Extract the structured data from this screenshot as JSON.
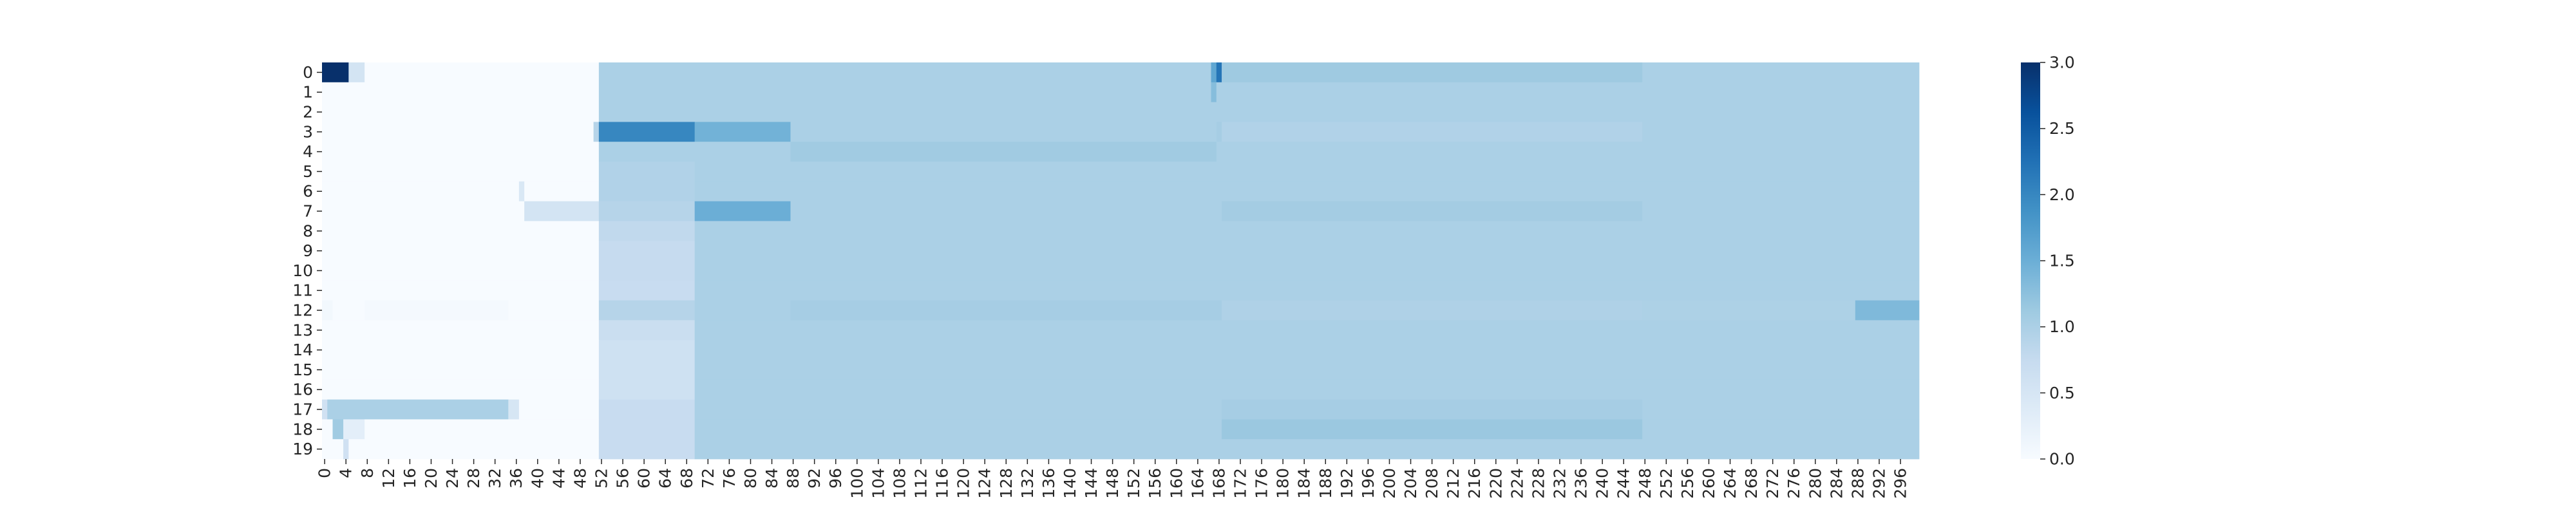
{
  "chart_data": {
    "type": "heatmap",
    "title": "",
    "xlabel": "",
    "ylabel": "",
    "n_rows": 20,
    "n_cols": 300,
    "x_tick_step": 4,
    "y_tick_labels": [
      "0",
      "1",
      "2",
      "3",
      "4",
      "5",
      "6",
      "7",
      "8",
      "9",
      "10",
      "11",
      "12",
      "13",
      "14",
      "15",
      "16",
      "17",
      "18",
      "19"
    ],
    "x_tick_labels": [
      "0",
      "4",
      "8",
      "12",
      "16",
      "20",
      "24",
      "28",
      "32",
      "36",
      "40",
      "44",
      "48",
      "52",
      "56",
      "60",
      "64",
      "68",
      "72",
      "76",
      "80",
      "84",
      "88",
      "92",
      "96",
      "100",
      "104",
      "108",
      "112",
      "116",
      "120",
      "124",
      "128",
      "132",
      "136",
      "140",
      "144",
      "148",
      "152",
      "156",
      "160",
      "164",
      "168",
      "172",
      "176",
      "180",
      "184",
      "188",
      "192",
      "196",
      "200",
      "204",
      "208",
      "212",
      "216",
      "220",
      "224",
      "228",
      "232",
      "236",
      "240",
      "244",
      "248",
      "252",
      "256",
      "260",
      "264",
      "268",
      "272",
      "276",
      "280",
      "284",
      "288",
      "292",
      "296"
    ],
    "colormap": "Blues",
    "colormap_stops": [
      "#f7fbff",
      "#deebf7",
      "#c6dbef",
      "#9ecae1",
      "#6baed6",
      "#4292c6",
      "#2171b5",
      "#08519c",
      "#08306b"
    ],
    "vmin": 0.0,
    "vmax": 3.0,
    "colorbar_ticks": [
      "0.0",
      "0.5",
      "1.0",
      "1.5",
      "2.0",
      "2.5",
      "3.0"
    ],
    "colorbar_tick_values": [
      0.0,
      0.5,
      1.0,
      1.5,
      2.0,
      2.5,
      3.0
    ],
    "value_blocks": [
      {
        "rows": [
          0,
          19
        ],
        "cols": [
          0,
          51
        ],
        "value": 0.0
      },
      {
        "rows": [
          0,
          19
        ],
        "cols": [
          52,
          299
        ],
        "value": 1.0
      },
      {
        "rows": [
          0,
          0
        ],
        "cols": [
          0,
          4
        ],
        "value": 3.0
      },
      {
        "rows": [
          0,
          0
        ],
        "cols": [
          5,
          7
        ],
        "value": 0.55
      },
      {
        "rows": [
          0,
          0
        ],
        "cols": [
          167,
          167
        ],
        "value": 1.6
      },
      {
        "rows": [
          0,
          0
        ],
        "cols": [
          168,
          168
        ],
        "value": 2.2
      },
      {
        "rows": [
          0,
          0
        ],
        "cols": [
          169,
          247
        ],
        "value": 1.12
      },
      {
        "rows": [
          1,
          1
        ],
        "cols": [
          167,
          167
        ],
        "value": 1.3
      },
      {
        "rows": [
          3,
          3
        ],
        "cols": [
          51,
          51
        ],
        "value": 0.9
      },
      {
        "rows": [
          3,
          3
        ],
        "cols": [
          52,
          69
        ],
        "value": 2.0
      },
      {
        "rows": [
          3,
          3
        ],
        "cols": [
          70,
          87
        ],
        "value": 1.45
      },
      {
        "rows": [
          3,
          3
        ],
        "cols": [
          168,
          168
        ],
        "value": 1.05
      },
      {
        "rows": [
          3,
          3
        ],
        "cols": [
          169,
          247
        ],
        "value": 0.95
      },
      {
        "rows": [
          4,
          4
        ],
        "cols": [
          88,
          167
        ],
        "value": 1.1
      },
      {
        "rows": [
          5,
          6
        ],
        "cols": [
          52,
          69
        ],
        "value": 0.95
      },
      {
        "rows": [
          6,
          6
        ],
        "cols": [
          37,
          37
        ],
        "value": 0.45
      },
      {
        "rows": [
          7,
          7
        ],
        "cols": [
          38,
          51
        ],
        "value": 0.55
      },
      {
        "rows": [
          7,
          7
        ],
        "cols": [
          52,
          69
        ],
        "value": 0.9
      },
      {
        "rows": [
          7,
          7
        ],
        "cols": [
          70,
          87
        ],
        "value": 1.5
      },
      {
        "rows": [
          7,
          7
        ],
        "cols": [
          169,
          247
        ],
        "value": 1.07
      },
      {
        "rows": [
          8,
          8
        ],
        "cols": [
          52,
          69
        ],
        "value": 0.8
      },
      {
        "rows": [
          9,
          10
        ],
        "cols": [
          52,
          69
        ],
        "value": 0.75
      },
      {
        "rows": [
          11,
          11
        ],
        "cols": [
          52,
          69
        ],
        "value": 0.72
      },
      {
        "rows": [
          12,
          12
        ],
        "cols": [
          0,
          1
        ],
        "value": 0.08
      },
      {
        "rows": [
          12,
          12
        ],
        "cols": [
          8,
          34
        ],
        "value": 0.05
      },
      {
        "rows": [
          12,
          12
        ],
        "cols": [
          52,
          69
        ],
        "value": 0.9
      },
      {
        "rows": [
          12,
          12
        ],
        "cols": [
          88,
          168
        ],
        "value": 1.05
      },
      {
        "rows": [
          12,
          12
        ],
        "cols": [
          169,
          247
        ],
        "value": 0.97
      },
      {
        "rows": [
          12,
          12
        ],
        "cols": [
          248,
          287
        ],
        "value": 0.98
      },
      {
        "rows": [
          12,
          12
        ],
        "cols": [
          288,
          299
        ],
        "value": 1.35
      },
      {
        "rows": [
          13,
          13
        ],
        "cols": [
          52,
          69
        ],
        "value": 0.68
      },
      {
        "rows": [
          14,
          16
        ],
        "cols": [
          52,
          69
        ],
        "value": 0.62
      },
      {
        "rows": [
          17,
          17
        ],
        "cols": [
          0,
          0
        ],
        "value": 0.6
      },
      {
        "rows": [
          17,
          17
        ],
        "cols": [
          1,
          34
        ],
        "value": 1.0
      },
      {
        "rows": [
          17,
          17
        ],
        "cols": [
          35,
          36
        ],
        "value": 0.5
      },
      {
        "rows": [
          17,
          17
        ],
        "cols": [
          52,
          69
        ],
        "value": 0.72
      },
      {
        "rows": [
          17,
          17
        ],
        "cols": [
          169,
          247
        ],
        "value": 1.05
      },
      {
        "rows": [
          18,
          18
        ],
        "cols": [
          2,
          3
        ],
        "value": 1.1
      },
      {
        "rows": [
          18,
          18
        ],
        "cols": [
          4,
          7
        ],
        "value": 0.3
      },
      {
        "rows": [
          18,
          18
        ],
        "cols": [
          52,
          69
        ],
        "value": 0.72
      },
      {
        "rows": [
          18,
          18
        ],
        "cols": [
          169,
          247
        ],
        "value": 1.15
      },
      {
        "rows": [
          19,
          19
        ],
        "cols": [
          4,
          4
        ],
        "value": 0.6
      },
      {
        "rows": [
          19,
          19
        ],
        "cols": [
          52,
          69
        ],
        "value": 0.72
      }
    ]
  }
}
